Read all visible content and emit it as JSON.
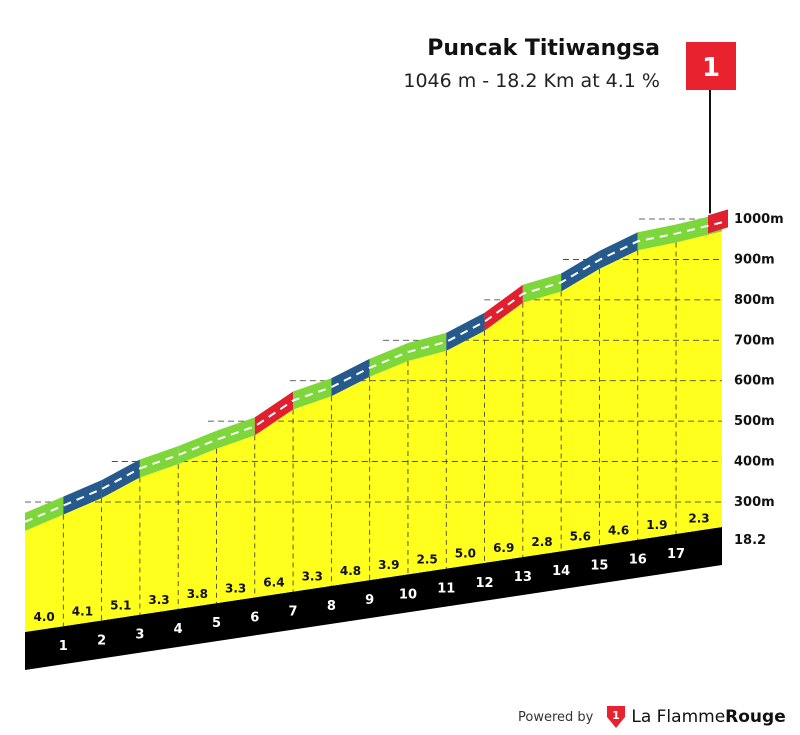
{
  "header": {
    "title": "Puncak Titiwangsa",
    "subtitle": "1046 m - 18.2 Km at 4.1 %"
  },
  "summit_flag": {
    "label": "1",
    "color": "#e8222f"
  },
  "footer": {
    "powered_by": "Powered by",
    "brand_part1": "La Flamme",
    "brand_part2": "Rouge",
    "logo_icon": "flag-logo-icon"
  },
  "colors": {
    "fill": "#ffff1e",
    "base_road": "#000000",
    "start_block": "#8a6d1a",
    "easy": "#7dd63a",
    "medium": "#275a8c",
    "hard": "#e0202e",
    "road_line": "#ffffff"
  },
  "chart_data": {
    "type": "area",
    "title": "Puncak Titiwangsa",
    "subtitle": "1046 m - 18.2 Km at 4.1 %",
    "y_tick_labels": [
      "300m",
      "400m",
      "500m",
      "600m",
      "700m",
      "800m",
      "900m",
      "1000m"
    ],
    "y_ticks": [
      300,
      400,
      500,
      600,
      700,
      800,
      900,
      1000
    ],
    "total_distance_label": "18.2",
    "km_labels": [
      "1",
      "2",
      "3",
      "4",
      "5",
      "6",
      "7",
      "8",
      "9",
      "10",
      "11",
      "12",
      "13",
      "14",
      "15",
      "16",
      "17"
    ],
    "gradient_labels": [
      "4.0",
      "4.1",
      "5.1",
      "3.3",
      "3.8",
      "3.3",
      "6.4",
      "3.3",
      "4.8",
      "3.9",
      "2.5",
      "5.0",
      "6.9",
      "2.8",
      "5.6",
      "4.6",
      "1.9",
      "2.3"
    ],
    "gradients": [
      4.0,
      4.1,
      5.1,
      3.3,
      3.8,
      3.3,
      6.4,
      3.3,
      4.8,
      3.9,
      2.5,
      5.0,
      6.9,
      2.8,
      5.6,
      4.6,
      1.9,
      2.3
    ],
    "segment_lengths_km": [
      1,
      1,
      1,
      1,
      1,
      1,
      1,
      1,
      1,
      1,
      1,
      1,
      1,
      1,
      1,
      1,
      1,
      1.2
    ],
    "difficulty": [
      "easy",
      "medium",
      "medium",
      "easy",
      "easy",
      "easy",
      "hard",
      "easy",
      "medium",
      "easy",
      "easy",
      "medium",
      "hard",
      "easy",
      "medium",
      "medium",
      "easy",
      "easy"
    ],
    "summit_elevation_m": 1046,
    "summit_marker": "1"
  }
}
